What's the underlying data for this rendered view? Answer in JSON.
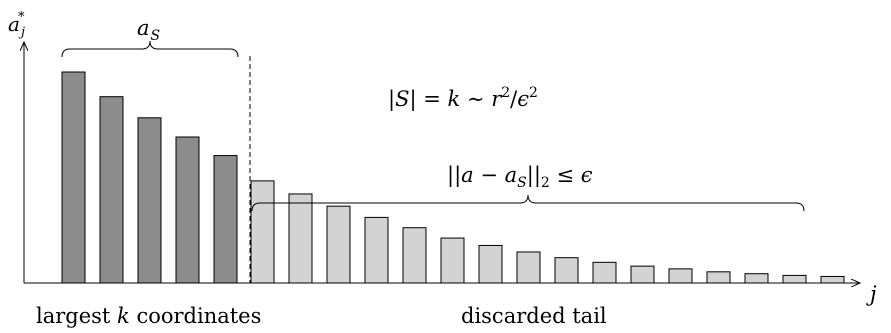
{
  "axes": {
    "y_label": "a",
    "y_label_sub": "j",
    "y_label_sup": "*",
    "x_label": "j"
  },
  "annotations": {
    "head_label": "a",
    "head_label_sub": "S",
    "size_eq": {
      "s": "|S|",
      "eq": " = ",
      "k": "k",
      "sim": " ∼ ",
      "r": "r",
      "r_sup": "2",
      "slash": "/",
      "eps": "ϵ",
      "eps_sup": "2"
    },
    "tail_eq": {
      "open": "||",
      "a": "a",
      "minus": " − ",
      "a2": "a",
      "a2_sub": "S",
      "close": "||",
      "norm_sub": "2",
      "le": " ≤ ",
      "eps": "ϵ"
    }
  },
  "captions": {
    "left_pre": "largest ",
    "left_k": "k",
    "left_post": " coordinates",
    "right": "discarded tail"
  },
  "colors": {
    "kept_fill": "#8c8c8c",
    "tail_fill": "#d3d3d3",
    "stroke": "#000000"
  },
  "bars": {
    "kept": [
      1.0,
      0.883,
      0.783,
      0.692,
      0.604
    ],
    "tail": [
      0.484,
      0.422,
      0.364,
      0.311,
      0.262,
      0.213,
      0.178,
      0.147,
      0.12,
      0.098,
      0.08,
      0.067,
      0.053,
      0.044,
      0.036,
      0.031
    ]
  }
}
